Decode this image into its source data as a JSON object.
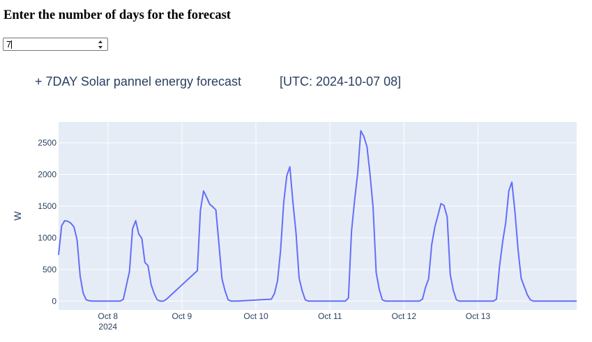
{
  "form": {
    "heading": "Enter the number of days for the forecast",
    "days_value": "7"
  },
  "chart_data": {
    "type": "line",
    "title": "+ 7DAY Solar pannel energy forecast           [UTC: 2024-10-07 08]",
    "xlabel": "",
    "ylabel": "W",
    "x_start": "2024-10-07 08:00",
    "x_end": "2024-10-14 08:00",
    "x_tick_labels": [
      "Oct 8",
      "Oct 9",
      "Oct 10",
      "Oct 11",
      "Oct 12",
      "Oct 13"
    ],
    "x_secondary_label": "2024",
    "y_tick_labels": [
      "0",
      "500",
      "1000",
      "1500",
      "2000",
      "2500"
    ],
    "ylim": [
      -140,
      2830
    ],
    "grid": true,
    "colors": {
      "line": "#636efa",
      "plot_bg": "#e5ecf6",
      "grid": "#ffffff"
    },
    "series": [
      {
        "x": [
          "2024-10-07 08:00",
          "2024-10-07 09:00",
          "2024-10-07 10:00",
          "2024-10-07 11:00",
          "2024-10-07 12:00",
          "2024-10-07 13:00",
          "2024-10-07 14:00",
          "2024-10-07 15:00",
          "2024-10-07 16:00",
          "2024-10-07 17:00",
          "2024-10-07 18:00",
          "2024-10-07 19:00",
          "2024-10-07 20:00",
          "2024-10-08 04:00",
          "2024-10-08 05:00",
          "2024-10-08 06:00",
          "2024-10-08 07:00",
          "2024-10-08 08:00",
          "2024-10-08 09:00",
          "2024-10-08 10:00",
          "2024-10-08 11:00",
          "2024-10-08 12:00",
          "2024-10-08 13:00",
          "2024-10-08 14:00",
          "2024-10-08 15:00",
          "2024-10-08 16:00",
          "2024-10-08 17:00",
          "2024-10-08 18:00",
          "2024-10-08 19:00",
          "2024-10-09 05:00",
          "2024-10-09 06:00",
          "2024-10-09 07:00",
          "2024-10-09 08:00",
          "2024-10-09 09:00",
          "2024-10-09 10:00",
          "2024-10-09 11:00",
          "2024-10-09 12:00",
          "2024-10-09 13:00",
          "2024-10-09 14:00",
          "2024-10-09 15:00",
          "2024-10-09 16:00",
          "2024-10-09 17:00",
          "2024-10-09 18:00",
          "2024-10-10 05:00",
          "2024-10-10 06:00",
          "2024-10-10 07:00",
          "2024-10-10 08:00",
          "2024-10-10 09:00",
          "2024-10-10 10:00",
          "2024-10-10 11:00",
          "2024-10-10 12:00",
          "2024-10-10 13:00",
          "2024-10-10 14:00",
          "2024-10-10 15:00",
          "2024-10-10 16:00",
          "2024-10-10 17:00",
          "2024-10-10 18:00",
          "2024-10-11 05:00",
          "2024-10-11 06:00",
          "2024-10-11 07:00",
          "2024-10-11 08:00",
          "2024-10-11 09:00",
          "2024-10-11 10:00",
          "2024-10-11 11:00",
          "2024-10-11 12:00",
          "2024-10-11 13:00",
          "2024-10-11 14:00",
          "2024-10-11 15:00",
          "2024-10-11 16:00",
          "2024-10-11 17:00",
          "2024-10-11 18:00",
          "2024-10-12 05:00",
          "2024-10-12 06:00",
          "2024-10-12 07:00",
          "2024-10-12 08:00",
          "2024-10-12 09:00",
          "2024-10-12 10:00",
          "2024-10-12 11:00",
          "2024-10-12 12:00",
          "2024-10-12 13:00",
          "2024-10-12 14:00",
          "2024-10-12 15:00",
          "2024-10-12 16:00",
          "2024-10-12 17:00",
          "2024-10-12 18:00",
          "2024-10-13 05:00",
          "2024-10-13 06:00",
          "2024-10-13 07:00",
          "2024-10-13 08:00",
          "2024-10-13 09:00",
          "2024-10-13 10:00",
          "2024-10-13 11:00",
          "2024-10-13 12:00",
          "2024-10-13 13:00",
          "2024-10-13 14:00",
          "2024-10-13 15:00",
          "2024-10-13 16:00",
          "2024-10-13 17:00",
          "2024-10-13 18:00",
          "2024-10-14 08:00"
        ],
        "y": [
          730,
          1190,
          1270,
          1260,
          1230,
          1170,
          970,
          390,
          120,
          20,
          5,
          0,
          0,
          0,
          30,
          250,
          470,
          1140,
          1270,
          1060,
          990,
          610,
          560,
          260,
          120,
          20,
          0,
          0,
          30,
          480,
          1430,
          1740,
          1640,
          1530,
          1490,
          1440,
          900,
          350,
          160,
          20,
          0,
          0,
          0,
          30,
          120,
          320,
          800,
          1560,
          1980,
          2120,
          1560,
          1080,
          360,
          160,
          20,
          0,
          0,
          0,
          50,
          1100,
          1600,
          2020,
          2690,
          2600,
          2440,
          2000,
          1470,
          450,
          180,
          20,
          0,
          0,
          30,
          220,
          350,
          890,
          1170,
          1350,
          1540,
          1510,
          1330,
          420,
          170,
          20,
          0,
          0,
          30,
          550,
          940,
          1240,
          1740,
          1880,
          1410,
          810,
          360,
          230,
          100,
          20,
          0,
          0
        ]
      }
    ]
  }
}
